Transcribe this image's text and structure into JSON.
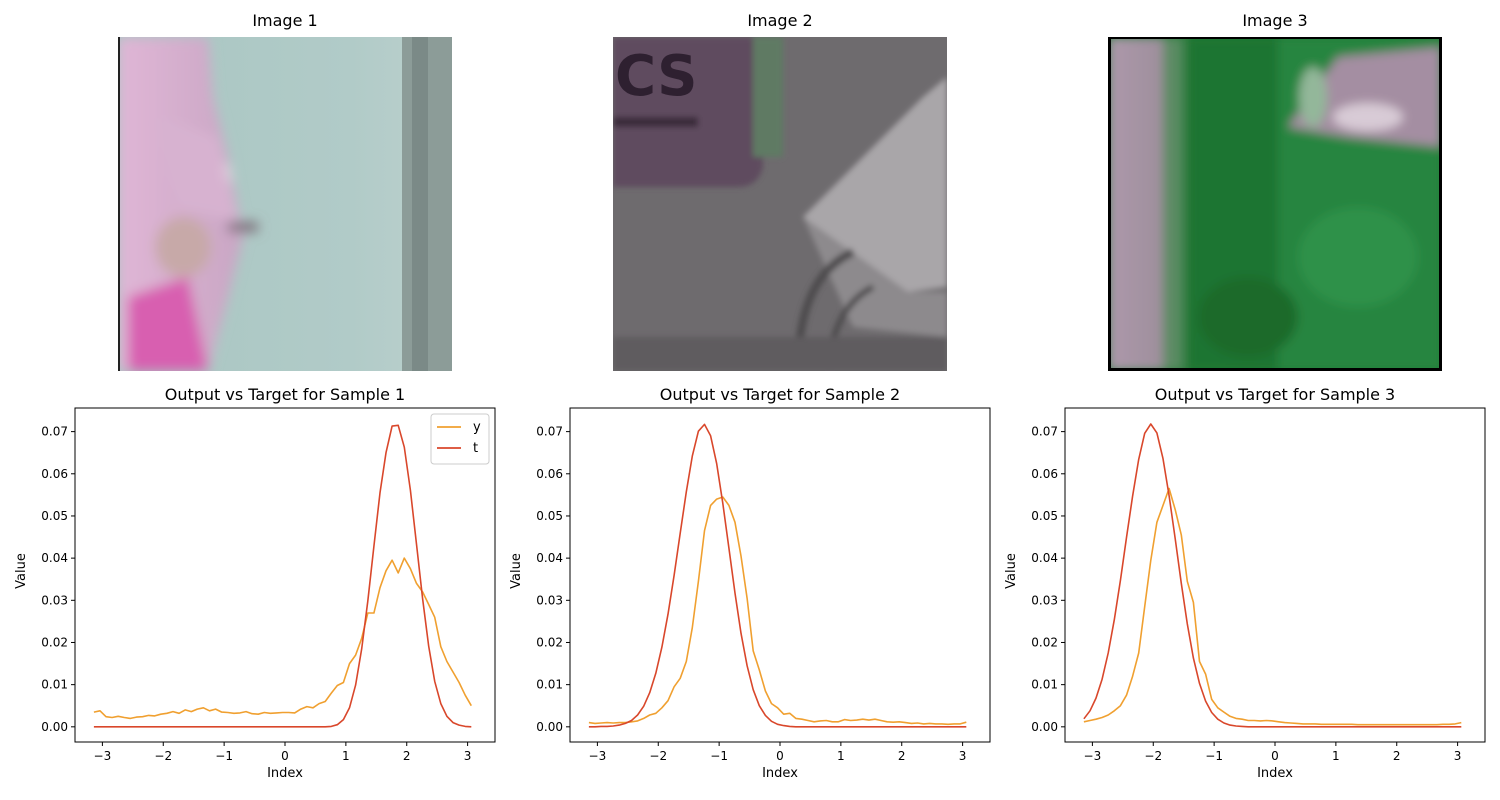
{
  "images": [
    {
      "title": "Image 1"
    },
    {
      "title": "Image 2",
      "text": "CS"
    },
    {
      "title": "Image 3"
    }
  ],
  "chart_data": [
    {
      "type": "line",
      "title": "Output vs Target for Sample 1",
      "xlabel": "Index",
      "ylabel": "Value",
      "xlim": [
        -3.45,
        3.45
      ],
      "ylim": [
        -0.0036,
        0.0756
      ],
      "xticks": [
        -3,
        -2,
        -1,
        0,
        1,
        2,
        3
      ],
      "yticks": [
        0.0,
        0.01,
        0.02,
        0.03,
        0.04,
        0.05,
        0.06,
        0.07
      ],
      "legend": {
        "location": "top-right"
      },
      "series": [
        {
          "name": "y",
          "color": "#f0a030",
          "x": [
            -3.14,
            -3.04,
            -2.94,
            -2.84,
            -2.74,
            -2.64,
            -2.54,
            -2.44,
            -2.34,
            -2.24,
            -2.14,
            -2.04,
            -1.94,
            -1.84,
            -1.74,
            -1.64,
            -1.54,
            -1.44,
            -1.34,
            -1.24,
            -1.14,
            -1.04,
            -0.94,
            -0.84,
            -0.74,
            -0.64,
            -0.54,
            -0.44,
            -0.34,
            -0.24,
            -0.14,
            -0.04,
            0.06,
            0.16,
            0.26,
            0.36,
            0.46,
            0.56,
            0.66,
            0.76,
            0.86,
            0.96,
            1.06,
            1.16,
            1.26,
            1.36,
            1.46,
            1.56,
            1.66,
            1.76,
            1.86,
            1.96,
            2.06,
            2.16,
            2.26,
            2.36,
            2.46,
            2.56,
            2.66,
            2.76,
            2.86,
            2.96,
            3.06
          ],
          "y": [
            0.0035,
            0.0038,
            0.0024,
            0.0022,
            0.0025,
            0.0022,
            0.002,
            0.0023,
            0.0024,
            0.0027,
            0.0026,
            0.003,
            0.0032,
            0.0036,
            0.0032,
            0.004,
            0.0036,
            0.0042,
            0.0045,
            0.0038,
            0.0042,
            0.0035,
            0.0034,
            0.0032,
            0.0033,
            0.0036,
            0.0031,
            0.003,
            0.0034,
            0.0032,
            0.0033,
            0.0034,
            0.0034,
            0.0033,
            0.0042,
            0.0048,
            0.0045,
            0.0055,
            0.006,
            0.008,
            0.0098,
            0.0105,
            0.015,
            0.017,
            0.021,
            0.027,
            0.027,
            0.033,
            0.037,
            0.0395,
            0.0365,
            0.04,
            0.0375,
            0.034,
            0.032,
            0.029,
            0.026,
            0.019,
            0.0155,
            0.013,
            0.0105,
            0.0075,
            0.005
          ]
        },
        {
          "name": "t",
          "color": "#d9472b",
          "x": [
            -3.14,
            -3.04,
            -2.94,
            -2.84,
            -2.74,
            -2.64,
            -2.54,
            -2.44,
            -2.34,
            -2.24,
            -2.14,
            -2.04,
            -1.94,
            -1.84,
            -1.74,
            -1.64,
            -1.54,
            -1.44,
            -1.34,
            -1.24,
            -1.14,
            -1.04,
            -0.94,
            -0.84,
            -0.74,
            -0.64,
            -0.54,
            -0.44,
            -0.34,
            -0.24,
            -0.14,
            -0.04,
            0.06,
            0.16,
            0.26,
            0.36,
            0.46,
            0.56,
            0.66,
            0.76,
            0.86,
            0.96,
            1.06,
            1.16,
            1.26,
            1.36,
            1.46,
            1.56,
            1.66,
            1.76,
            1.86,
            1.96,
            2.06,
            2.16,
            2.26,
            2.36,
            2.46,
            2.56,
            2.66,
            2.76,
            2.86,
            2.96,
            3.06
          ],
          "y": [
            0,
            0,
            0,
            0,
            0,
            0,
            0,
            0,
            0,
            0,
            0,
            0,
            0,
            0,
            0,
            0,
            0,
            0,
            0,
            0,
            0,
            0,
            0,
            0,
            0,
            0,
            0,
            0,
            0,
            0,
            0,
            0,
            0,
            0,
            0,
            0,
            0,
            0,
            0,
            0.0001,
            0.0005,
            0.0017,
            0.0045,
            0.0099,
            0.0185,
            0.0298,
            0.0428,
            0.0555,
            0.065,
            0.0713,
            0.0715,
            0.0663,
            0.0561,
            0.0433,
            0.0304,
            0.0191,
            0.0108,
            0.0055,
            0.0025,
            0.001,
            0.0004,
            0.0001,
            0
          ]
        }
      ]
    },
    {
      "type": "line",
      "title": "Output vs Target for Sample 2",
      "xlabel": "Index",
      "ylabel": "Value",
      "xlim": [
        -3.45,
        3.45
      ],
      "ylim": [
        -0.0036,
        0.0756
      ],
      "xticks": [
        -3,
        -2,
        -1,
        0,
        1,
        2,
        3
      ],
      "yticks": [
        0.0,
        0.01,
        0.02,
        0.03,
        0.04,
        0.05,
        0.06,
        0.07
      ],
      "series": [
        {
          "name": "y",
          "color": "#f0a030",
          "x": [
            -3.14,
            -3.04,
            -2.94,
            -2.84,
            -2.74,
            -2.64,
            -2.54,
            -2.44,
            -2.34,
            -2.24,
            -2.14,
            -2.04,
            -1.94,
            -1.84,
            -1.74,
            -1.64,
            -1.54,
            -1.44,
            -1.34,
            -1.24,
            -1.14,
            -1.04,
            -0.94,
            -0.84,
            -0.74,
            -0.64,
            -0.54,
            -0.44,
            -0.34,
            -0.24,
            -0.14,
            -0.04,
            0.06,
            0.16,
            0.26,
            0.36,
            0.46,
            0.56,
            0.66,
            0.76,
            0.86,
            0.96,
            1.06,
            1.16,
            1.26,
            1.36,
            1.46,
            1.56,
            1.66,
            1.76,
            1.86,
            1.96,
            2.06,
            2.16,
            2.26,
            2.36,
            2.46,
            2.56,
            2.66,
            2.76,
            2.86,
            2.96,
            3.06
          ],
          "y": [
            0.001,
            0.0008,
            0.0009,
            0.001,
            0.0009,
            0.001,
            0.001,
            0.0012,
            0.0014,
            0.002,
            0.0028,
            0.0032,
            0.0045,
            0.0062,
            0.0095,
            0.0115,
            0.0155,
            0.0235,
            0.0345,
            0.0465,
            0.0525,
            0.054,
            0.0545,
            0.0525,
            0.0485,
            0.0405,
            0.0305,
            0.018,
            0.0135,
            0.0085,
            0.0055,
            0.0045,
            0.003,
            0.0032,
            0.002,
            0.0018,
            0.0015,
            0.0012,
            0.0014,
            0.0015,
            0.0012,
            0.0012,
            0.0017,
            0.0015,
            0.0016,
            0.0018,
            0.0016,
            0.0018,
            0.0015,
            0.0012,
            0.0011,
            0.0012,
            0.001,
            0.0008,
            0.0009,
            0.0007,
            0.0008,
            0.0007,
            0.0007,
            0.0006,
            0.0007,
            0.0007,
            0.0011
          ]
        },
        {
          "name": "t",
          "color": "#d9472b",
          "x": [
            -3.14,
            -3.04,
            -2.94,
            -2.84,
            -2.74,
            -2.64,
            -2.54,
            -2.44,
            -2.34,
            -2.24,
            -2.14,
            -2.04,
            -1.94,
            -1.84,
            -1.74,
            -1.64,
            -1.54,
            -1.44,
            -1.34,
            -1.24,
            -1.14,
            -1.04,
            -0.94,
            -0.84,
            -0.74,
            -0.64,
            -0.54,
            -0.44,
            -0.34,
            -0.24,
            -0.14,
            -0.04,
            0.06,
            0.16,
            0.26,
            0.36,
            0.46,
            0.56,
            0.66,
            0.76,
            0.86,
            0.96,
            1.06,
            1.16,
            1.26,
            1.36,
            1.46,
            1.56,
            1.66,
            1.76,
            1.86,
            1.96,
            2.06,
            2.16,
            2.26,
            2.36,
            2.46,
            2.56,
            2.66,
            2.76,
            2.86,
            2.96,
            3.06
          ],
          "y": [
            0,
            0,
            0.0001,
            0.0001,
            0.0002,
            0.0004,
            0.0008,
            0.0015,
            0.0028,
            0.0049,
            0.0081,
            0.0127,
            0.0189,
            0.0267,
            0.0359,
            0.0459,
            0.0557,
            0.0642,
            0.0701,
            0.0717,
            0.069,
            0.0624,
            0.053,
            0.0424,
            0.0317,
            0.0222,
            0.0145,
            0.0088,
            0.005,
            0.0027,
            0.0013,
            0.0006,
            0.0003,
            0.0001,
            0,
            0,
            0,
            0,
            0,
            0,
            0,
            0,
            0,
            0,
            0,
            0,
            0,
            0,
            0,
            0,
            0,
            0,
            0,
            0,
            0,
            0,
            0,
            0,
            0,
            0,
            0,
            0,
            0
          ]
        }
      ]
    },
    {
      "type": "line",
      "title": "Output vs Target for Sample 3",
      "xlabel": "Index",
      "ylabel": "Value",
      "xlim": [
        -3.45,
        3.45
      ],
      "ylim": [
        -0.0036,
        0.0756
      ],
      "xticks": [
        -3,
        -2,
        -1,
        0,
        1,
        2,
        3
      ],
      "yticks": [
        0.0,
        0.01,
        0.02,
        0.03,
        0.04,
        0.05,
        0.06,
        0.07
      ],
      "series": [
        {
          "name": "y",
          "color": "#f0a030",
          "x": [
            -3.14,
            -3.04,
            -2.94,
            -2.84,
            -2.74,
            -2.64,
            -2.54,
            -2.44,
            -2.34,
            -2.24,
            -2.14,
            -2.04,
            -1.94,
            -1.84,
            -1.74,
            -1.64,
            -1.54,
            -1.44,
            -1.34,
            -1.24,
            -1.14,
            -1.04,
            -0.94,
            -0.84,
            -0.74,
            -0.64,
            -0.54,
            -0.44,
            -0.34,
            -0.24,
            -0.14,
            -0.04,
            0.06,
            0.16,
            0.26,
            0.36,
            0.46,
            0.56,
            0.66,
            0.76,
            0.86,
            0.96,
            1.06,
            1.16,
            1.26,
            1.36,
            1.46,
            1.56,
            1.66,
            1.76,
            1.86,
            1.96,
            2.06,
            2.16,
            2.26,
            2.36,
            2.46,
            2.56,
            2.66,
            2.76,
            2.86,
            2.96,
            3.06
          ],
          "y": [
            0.0012,
            0.0015,
            0.0018,
            0.0022,
            0.0028,
            0.0038,
            0.005,
            0.0075,
            0.012,
            0.0175,
            0.0285,
            0.0395,
            0.0485,
            0.0525,
            0.0565,
            0.0515,
            0.0455,
            0.0345,
            0.0295,
            0.0155,
            0.0125,
            0.0065,
            0.0045,
            0.0035,
            0.0025,
            0.002,
            0.0018,
            0.0015,
            0.0015,
            0.0014,
            0.0015,
            0.0014,
            0.0012,
            0.001,
            0.0009,
            0.0008,
            0.0007,
            0.0007,
            0.0007,
            0.0006,
            0.0006,
            0.0006,
            0.0006,
            0.0006,
            0.0006,
            0.0005,
            0.0005,
            0.0005,
            0.0005,
            0.0005,
            0.0005,
            0.0005,
            0.0005,
            0.0005,
            0.0005,
            0.0005,
            0.0005,
            0.0005,
            0.0005,
            0.0006,
            0.0006,
            0.0007,
            0.001
          ]
        },
        {
          "name": "t",
          "color": "#d9472b",
          "x": [
            -3.14,
            -3.04,
            -2.94,
            -2.84,
            -2.74,
            -2.64,
            -2.54,
            -2.44,
            -2.34,
            -2.24,
            -2.14,
            -2.04,
            -1.94,
            -1.84,
            -1.74,
            -1.64,
            -1.54,
            -1.44,
            -1.34,
            -1.24,
            -1.14,
            -1.04,
            -0.94,
            -0.84,
            -0.74,
            -0.64,
            -0.54,
            -0.44,
            -0.34,
            -0.24,
            -0.14,
            -0.04,
            0.06,
            0.16,
            0.26,
            0.36,
            0.46,
            0.56,
            0.66,
            0.76,
            0.86,
            0.96,
            1.06,
            1.16,
            1.26,
            1.36,
            1.46,
            1.56,
            1.66,
            1.76,
            1.86,
            1.96,
            2.06,
            2.16,
            2.26,
            2.36,
            2.46,
            2.56,
            2.66,
            2.76,
            2.86,
            2.96,
            3.06
          ],
          "y": [
            0.0019,
            0.0038,
            0.0068,
            0.0113,
            0.0175,
            0.0254,
            0.0347,
            0.0449,
            0.0547,
            0.0634,
            0.0696,
            0.0718,
            0.0697,
            0.0636,
            0.0548,
            0.0446,
            0.034,
            0.0244,
            0.0163,
            0.0103,
            0.0061,
            0.0034,
            0.0018,
            0.0009,
            0.0004,
            0.0002,
            0.0001,
            0,
            0,
            0,
            0,
            0,
            0,
            0,
            0,
            0,
            0,
            0,
            0,
            0,
            0,
            0,
            0,
            0,
            0,
            0,
            0,
            0,
            0,
            0,
            0,
            0,
            0,
            0,
            0,
            0,
            0,
            0,
            0,
            0,
            0,
            0,
            0
          ]
        }
      ]
    }
  ]
}
